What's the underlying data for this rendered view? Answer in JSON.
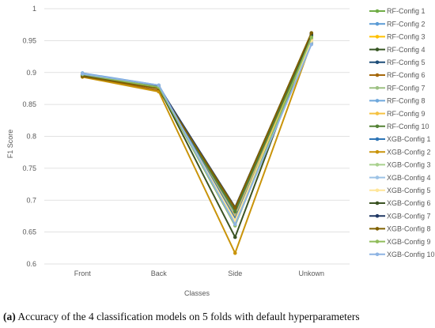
{
  "caption": {
    "label": "(a)",
    "text": "Accuracy of the 4 classification models on 5 folds with default hyperparameters"
  },
  "chart_data": {
    "type": "line",
    "xlabel": "Classes",
    "ylabel": "F1 Score",
    "categories": [
      "Front",
      "Back",
      "Side",
      "Unkown"
    ],
    "ylim": [
      0.6,
      1
    ],
    "yticks": [
      "0.6",
      "0.65",
      "0.7",
      "0.75",
      "0.8",
      "0.85",
      "0.9",
      "0.95",
      "1"
    ],
    "grid": "horizontal",
    "legend_position": "right",
    "series": [
      {
        "name": "RF-Config 1",
        "color": "#70ad47",
        "values": [
          0.898,
          0.879,
          0.681,
          0.957
        ]
      },
      {
        "name": "RF-Config 2",
        "color": "#5b9bd5",
        "values": [
          0.899,
          0.88,
          0.673,
          0.95
        ]
      },
      {
        "name": "RF-Config 3",
        "color": "#ffc000",
        "values": [
          0.898,
          0.878,
          0.679,
          0.953
        ]
      },
      {
        "name": "RF-Config 4",
        "color": "#375623",
        "values": [
          0.896,
          0.876,
          0.685,
          0.959
        ]
      },
      {
        "name": "RF-Config 5",
        "color": "#1f4e79",
        "values": [
          0.897,
          0.877,
          0.683,
          0.958
        ]
      },
      {
        "name": "RF-Config 6",
        "color": "#a5680c",
        "values": [
          0.894,
          0.872,
          0.687,
          0.961
        ]
      },
      {
        "name": "RF-Config 7",
        "color": "#9dc183",
        "values": [
          0.897,
          0.878,
          0.678,
          0.954
        ]
      },
      {
        "name": "RF-Config 8",
        "color": "#6fa8dc",
        "values": [
          0.898,
          0.879,
          0.676,
          0.952
        ]
      },
      {
        "name": "RF-Config 9",
        "color": "#f5c242",
        "values": [
          0.896,
          0.877,
          0.674,
          0.951
        ]
      },
      {
        "name": "RF-Config 10",
        "color": "#548235",
        "values": [
          0.897,
          0.876,
          0.682,
          0.956
        ]
      },
      {
        "name": "XGB-Config 1",
        "color": "#2e75b6",
        "values": [
          0.896,
          0.879,
          0.671,
          0.946
        ]
      },
      {
        "name": "XGB-Config 2",
        "color": "#c9940a",
        "values": [
          0.893,
          0.87,
          0.617,
          0.947
        ]
      },
      {
        "name": "XGB-Config 3",
        "color": "#a9d18e",
        "values": [
          0.897,
          0.878,
          0.665,
          0.949
        ]
      },
      {
        "name": "XGB-Config 4",
        "color": "#9dc3e6",
        "values": [
          0.898,
          0.879,
          0.663,
          0.948
        ]
      },
      {
        "name": "XGB-Config 5",
        "color": "#ffe699",
        "values": [
          0.896,
          0.877,
          0.668,
          0.95
        ]
      },
      {
        "name": "XGB-Config 6",
        "color": "#3b5323",
        "values": [
          0.895,
          0.876,
          0.642,
          0.96
        ]
      },
      {
        "name": "XGB-Config 7",
        "color": "#203864",
        "values": [
          0.896,
          0.878,
          0.689,
          0.961
        ]
      },
      {
        "name": "XGB-Config 8",
        "color": "#7f6000",
        "values": [
          0.894,
          0.875,
          0.688,
          0.962
        ]
      },
      {
        "name": "XGB-Config 9",
        "color": "#8fbc5a",
        "values": [
          0.897,
          0.877,
          0.66,
          0.955
        ]
      },
      {
        "name": "XGB-Config 10",
        "color": "#8eb4e3",
        "values": [
          0.898,
          0.88,
          0.662,
          0.944
        ]
      }
    ]
  }
}
